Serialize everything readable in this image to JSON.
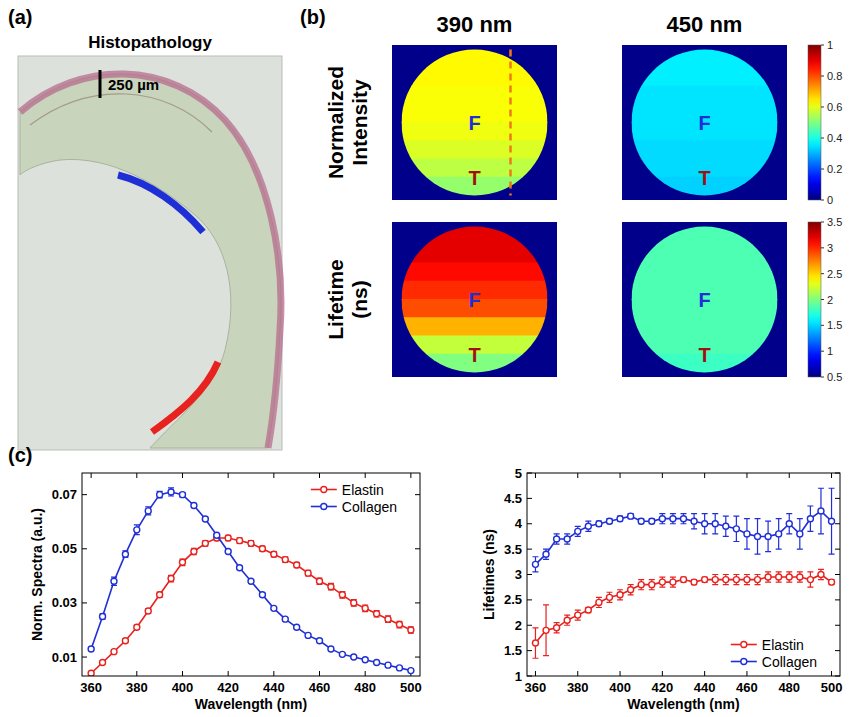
{
  "panel_a": {
    "letter": "(a)",
    "title": "Histopathology",
    "scale_bar": "250 µm"
  },
  "panel_b": {
    "letter": "(b)",
    "columns": [
      "390 nm",
      "450 nm"
    ],
    "rows": [
      "Normalized Intensity",
      "Lifetime (ns)"
    ],
    "colorbars": [
      {
        "range": [
          0,
          1
        ],
        "ticks": [
          0,
          0.2,
          0.4,
          0.6,
          0.8,
          1
        ]
      },
      {
        "range": [
          0.5,
          3.5
        ],
        "ticks": [
          0.5,
          1,
          1.5,
          2,
          2.5,
          3,
          3.5
        ]
      }
    ],
    "maps": [
      {
        "labels": [
          "F",
          "T"
        ],
        "values": [
          0.63,
          0.63,
          0.62,
          0.62,
          0.61,
          0.59,
          0.56,
          0.52
        ]
      },
      {
        "labels": [
          "F",
          "T"
        ],
        "values": [
          0.36,
          0.36,
          0.35,
          0.35,
          0.35,
          0.34,
          0.34,
          0.33
        ]
      },
      {
        "labels": [
          "F",
          "T"
        ],
        "values": [
          3.2,
          3.2,
          3.1,
          3.0,
          2.9,
          2.6,
          2.2,
          2.0
        ]
      },
      {
        "labels": [
          "F",
          "T"
        ],
        "values": [
          1.85,
          1.85,
          1.85,
          1.85,
          1.85,
          1.85,
          1.85,
          1.8
        ]
      }
    ]
  },
  "panel_c": {
    "letter": "(c)"
  },
  "chart_data": [
    {
      "type": "line",
      "x": [
        360,
        365,
        370,
        375,
        380,
        385,
        390,
        395,
        400,
        405,
        410,
        415,
        420,
        425,
        430,
        435,
        440,
        445,
        450,
        455,
        460,
        465,
        470,
        475,
        480,
        485,
        490,
        495,
        500
      ],
      "xlim": [
        356,
        504
      ],
      "xticks": [
        360,
        380,
        400,
        420,
        440,
        460,
        480,
        500
      ],
      "ylim": [
        0.003,
        0.078
      ],
      "yticks": [
        0.01,
        0.03,
        0.05,
        0.07
      ],
      "xlabel": "Wavelength (nm)",
      "ylabel": "Norm. Spectra (a.u.)",
      "legend": "upper right",
      "grid": false,
      "marker": "circle",
      "series": [
        {
          "name": "Elastin",
          "color": "#e8221e",
          "values": [
            0.004,
            0.008,
            0.012,
            0.016,
            0.021,
            0.027,
            0.033,
            0.039,
            0.045,
            0.049,
            0.052,
            0.054,
            0.054,
            0.053,
            0.052,
            0.05,
            0.048,
            0.046,
            0.044,
            0.041,
            0.038,
            0.036,
            0.033,
            0.03,
            0.028,
            0.026,
            0.024,
            0.022,
            0.02
          ],
          "errors": [
            0.0004,
            0.0005,
            0.0006,
            0.0007,
            0.0008,
            0.0009,
            0.001,
            0.0012,
            0.0012,
            0.0012,
            0.001,
            0.001,
            0.001,
            0.001,
            0.001,
            0.001,
            0.001,
            0.001,
            0.001,
            0.001,
            0.0012,
            0.0012,
            0.0012,
            0.0012,
            0.0012,
            0.0012,
            0.0012,
            0.0012,
            0.0012
          ]
        },
        {
          "name": "Collagen",
          "color": "#1f2fd6",
          "values": [
            0.013,
            0.025,
            0.038,
            0.048,
            0.057,
            0.064,
            0.07,
            0.071,
            0.07,
            0.066,
            0.061,
            0.055,
            0.049,
            0.043,
            0.038,
            0.033,
            0.028,
            0.024,
            0.021,
            0.018,
            0.016,
            0.013,
            0.011,
            0.01,
            0.009,
            0.008,
            0.007,
            0.006,
            0.005
          ],
          "errors": [
            0.0006,
            0.001,
            0.0015,
            0.0012,
            0.0018,
            0.0015,
            0.0012,
            0.0015,
            0.0008,
            0.0008,
            0.0006,
            0.0006,
            0.0006,
            0.0006,
            0.0006,
            0.0006,
            0.0006,
            0.0006,
            0.0006,
            0.0006,
            0.0005,
            0.0005,
            0.0005,
            0.0005,
            0.0005,
            0.0005,
            0.0005,
            0.0005,
            0.0005
          ]
        }
      ]
    },
    {
      "type": "line",
      "x": [
        360,
        365,
        370,
        375,
        380,
        385,
        390,
        395,
        400,
        405,
        410,
        415,
        420,
        425,
        430,
        435,
        440,
        445,
        450,
        455,
        460,
        465,
        470,
        475,
        480,
        485,
        490,
        495,
        500
      ],
      "xlim": [
        356,
        504
      ],
      "xticks": [
        360,
        380,
        400,
        420,
        440,
        460,
        480,
        500
      ],
      "ylim": [
        1,
        5
      ],
      "yticks": [
        1,
        1.5,
        2,
        2.5,
        3,
        3.5,
        4,
        4.5,
        5
      ],
      "xlabel": "Wavelength (nm)",
      "ylabel": "Lifetimes (ns)",
      "legend": "lower right",
      "grid": false,
      "marker": "circle",
      "series": [
        {
          "name": "Elastin",
          "color": "#e8221e",
          "values": [
            1.65,
            1.9,
            1.95,
            2.1,
            2.2,
            2.3,
            2.45,
            2.55,
            2.6,
            2.7,
            2.8,
            2.8,
            2.85,
            2.85,
            2.9,
            2.85,
            2.9,
            2.9,
            2.9,
            2.9,
            2.9,
            2.9,
            2.95,
            2.95,
            2.95,
            2.95,
            2.9,
            3.0,
            2.85
          ],
          "errors": [
            0.3,
            0.5,
            0.1,
            0.1,
            0.1,
            0.05,
            0.1,
            0.1,
            0.1,
            0.1,
            0.1,
            0.1,
            0.1,
            0.1,
            0.05,
            0.05,
            0.05,
            0.1,
            0.1,
            0.1,
            0.1,
            0.1,
            0.1,
            0.1,
            0.1,
            0.1,
            0.15,
            0.1,
            0.05
          ]
        },
        {
          "name": "Collagen",
          "color": "#1f2fd6",
          "values": [
            3.2,
            3.4,
            3.7,
            3.7,
            3.85,
            3.95,
            4.0,
            4.05,
            4.1,
            4.15,
            4.05,
            4.05,
            4.1,
            4.1,
            4.1,
            4.05,
            4.0,
            4.0,
            3.95,
            3.9,
            3.8,
            3.75,
            3.75,
            3.8,
            4.0,
            3.8,
            4.1,
            4.25,
            4.05
          ],
          "errors": [
            0.15,
            0.1,
            0.1,
            0.1,
            0.1,
            0.1,
            0.05,
            0.05,
            0.05,
            0.05,
            0.05,
            0.05,
            0.1,
            0.1,
            0.1,
            0.15,
            0.2,
            0.2,
            0.2,
            0.25,
            0.3,
            0.35,
            0.3,
            0.3,
            0.2,
            0.3,
            0.25,
            0.45,
            0.65
          ]
        }
      ]
    }
  ]
}
